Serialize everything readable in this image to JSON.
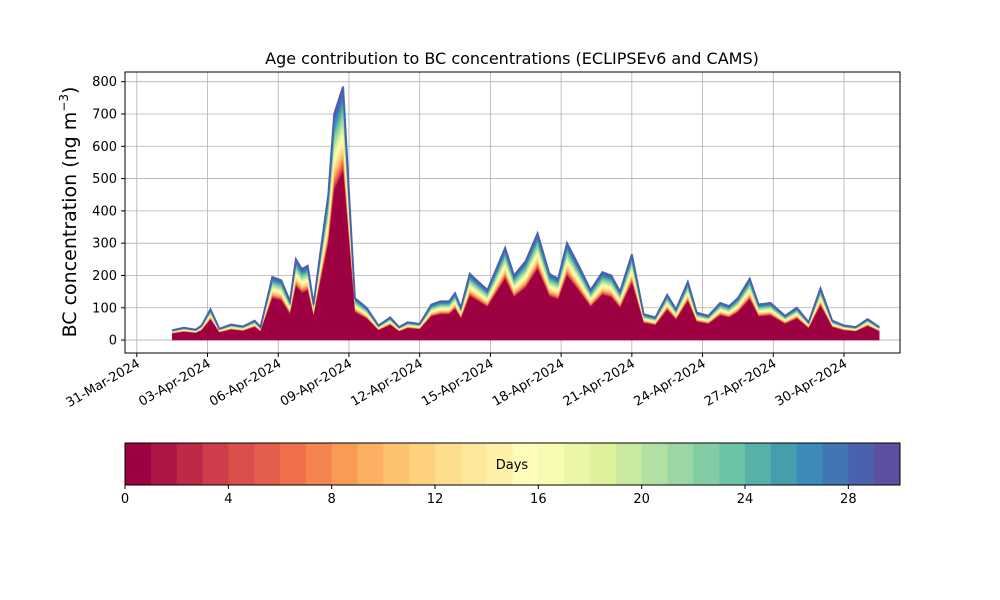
{
  "chart_data": {
    "type": "area",
    "title": "Age contribution to BC concentrations (ECLIPSEv6 and CAMS)",
    "ylabel": "BC concentration (ng m",
    "ylabel_sup": "−3",
    "ylabel_close": ")",
    "xlabel": "",
    "ylim": [
      -40,
      830
    ],
    "yticks": [
      0,
      100,
      200,
      300,
      400,
      500,
      600,
      700,
      800
    ],
    "xlim": [
      "2024-03-30T12:00",
      "2024-05-02T09:00"
    ],
    "xticks": [
      "31-Mar-2024",
      "03-Apr-2024",
      "06-Apr-2024",
      "09-Apr-2024",
      "12-Apr-2024",
      "15-Apr-2024",
      "18-Apr-2024",
      "21-Apr-2024",
      "24-Apr-2024",
      "27-Apr-2024",
      "30-Apr-2024"
    ],
    "grid": true,
    "stack_description": "stacked contributions by age 0–30 days; youngest (0 days) at bottom",
    "total_series": {
      "x": [
        "2024-04-01T12:00",
        "2024-04-02T00:00",
        "2024-04-02T12:00",
        "2024-04-02T18:00",
        "2024-04-03T03:00",
        "2024-04-03T12:00",
        "2024-04-04T00:00",
        "2024-04-04T12:00",
        "2024-04-05T00:00",
        "2024-04-05T06:00",
        "2024-04-05T18:00",
        "2024-04-06T03:00",
        "2024-04-06T12:00",
        "2024-04-06T18:00",
        "2024-04-07T00:00",
        "2024-04-07T06:00",
        "2024-04-07T12:00",
        "2024-04-07T18:00",
        "2024-04-08T03:00",
        "2024-04-08T09:00",
        "2024-04-08T18:00",
        "2024-04-09T06:00",
        "2024-04-09T18:00",
        "2024-04-10T06:00",
        "2024-04-10T18:00",
        "2024-04-11T03:00",
        "2024-04-11T12:00",
        "2024-04-12T00:00",
        "2024-04-12T12:00",
        "2024-04-12T21:00",
        "2024-04-13T06:00",
        "2024-04-13T12:00",
        "2024-04-13T18:00",
        "2024-04-14T03:00",
        "2024-04-14T12:00",
        "2024-04-14T21:00",
        "2024-04-15T06:00",
        "2024-04-15T15:00",
        "2024-04-16T00:00",
        "2024-04-16T12:00",
        "2024-04-17T00:00",
        "2024-04-17T12:00",
        "2024-04-17T21:00",
        "2024-04-18T06:00",
        "2024-04-18T18:00",
        "2024-04-19T06:00",
        "2024-04-19T18:00",
        "2024-04-20T03:00",
        "2024-04-20T12:00",
        "2024-04-21T00:00",
        "2024-04-21T12:00",
        "2024-04-22T00:00",
        "2024-04-22T12:00",
        "2024-04-22T21:00",
        "2024-04-23T09:00",
        "2024-04-23T18:00",
        "2024-04-24T06:00",
        "2024-04-24T18:00",
        "2024-04-25T03:00",
        "2024-04-25T12:00",
        "2024-04-26T00:00",
        "2024-04-26T09:00",
        "2024-04-26T21:00",
        "2024-04-27T12:00",
        "2024-04-28T00:00",
        "2024-04-28T12:00",
        "2024-04-29T00:00",
        "2024-04-29T12:00",
        "2024-04-30T00:00",
        "2024-04-30T12:00",
        "2024-05-01T00:00",
        "2024-05-01T12:00"
      ],
      "y": [
        30,
        38,
        32,
        45,
        95,
        35,
        48,
        42,
        60,
        40,
        195,
        185,
        120,
        250,
        220,
        230,
        110,
        250,
        450,
        700,
        785,
        130,
        100,
        45,
        70,
        40,
        55,
        50,
        110,
        120,
        120,
        145,
        100,
        205,
        180,
        155,
        220,
        285,
        200,
        245,
        330,
        205,
        190,
        300,
        230,
        155,
        210,
        200,
        150,
        265,
        80,
        70,
        140,
        95,
        180,
        85,
        75,
        115,
        105,
        130,
        190,
        110,
        115,
        75,
        100,
        55,
        160,
        60,
        45,
        40,
        65,
        40
      ]
    },
    "colorbar": {
      "label": "Days",
      "min": 0,
      "max": 30,
      "ticks": [
        0,
        4,
        8,
        12,
        16,
        20,
        24,
        28
      ],
      "colors": [
        "#9e0142",
        "#ae1545",
        "#be2948",
        "#cf3d4b",
        "#da4e4b",
        "#e55e4b",
        "#f06f4a",
        "#f5854e",
        "#f99b56",
        "#fcb063",
        "#fdc26f",
        "#fdd17e",
        "#fedd8c",
        "#fee79a",
        "#fff0a8",
        "#fffbb8",
        "#f7fcb2",
        "#ecf7a5",
        "#def399",
        "#c8e99e",
        "#b2e0a2",
        "#9bd7a4",
        "#82cda5",
        "#6bc4a4",
        "#58b1a8",
        "#469dad",
        "#3c8ab9",
        "#4176b5",
        "#4a62ad",
        "#5e4fa2"
      ]
    }
  }
}
